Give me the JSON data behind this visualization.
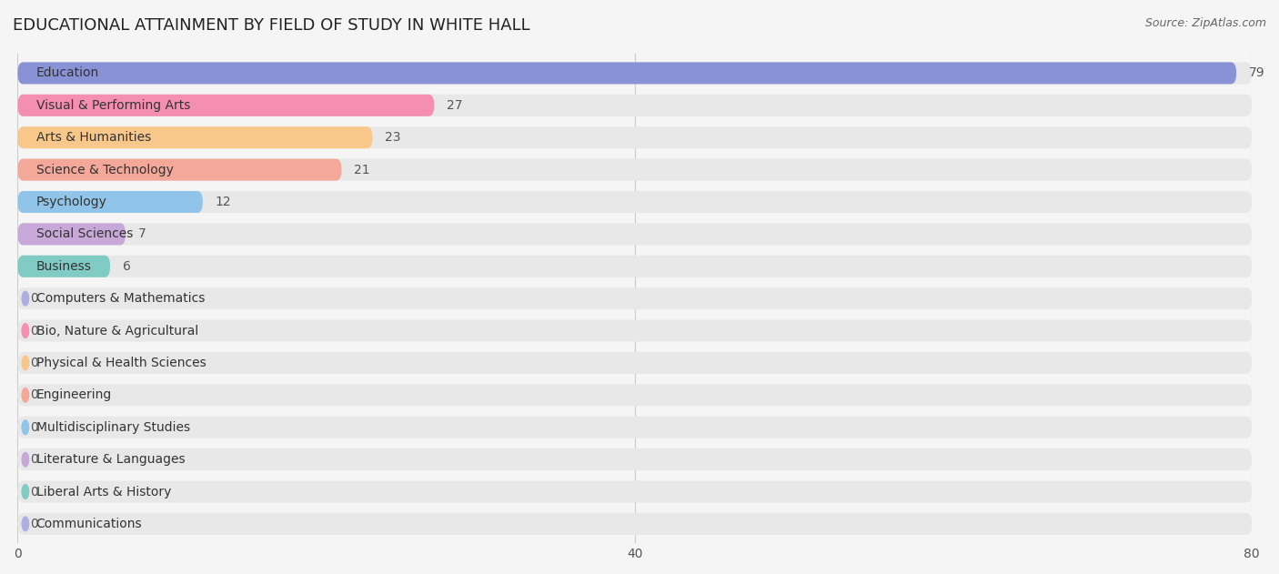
{
  "title": "EDUCATIONAL ATTAINMENT BY FIELD OF STUDY IN WHITE HALL",
  "source": "Source: ZipAtlas.com",
  "categories": [
    "Education",
    "Visual & Performing Arts",
    "Arts & Humanities",
    "Science & Technology",
    "Psychology",
    "Social Sciences",
    "Business",
    "Computers & Mathematics",
    "Bio, Nature & Agricultural",
    "Physical & Health Sciences",
    "Engineering",
    "Multidisciplinary Studies",
    "Literature & Languages",
    "Liberal Arts & History",
    "Communications"
  ],
  "values": [
    79,
    27,
    23,
    21,
    12,
    7,
    6,
    0,
    0,
    0,
    0,
    0,
    0,
    0,
    0
  ],
  "bar_colors": [
    "#8892d4",
    "#f48fb1",
    "#f8c88a",
    "#f4a89a",
    "#90c4e8",
    "#c8a8d8",
    "#80cbc4",
    "#b0aee0",
    "#f48fb1",
    "#f8c88a",
    "#f4a89a",
    "#90c4e8",
    "#c8a8d8",
    "#80cbc4",
    "#b0aee0"
  ],
  "xlim": [
    0,
    80
  ],
  "xticks": [
    0,
    40,
    80
  ],
  "background_color": "#f5f5f5",
  "bar_background_color": "#e8e8e8",
  "title_fontsize": 13,
  "label_fontsize": 10,
  "value_fontsize": 10
}
